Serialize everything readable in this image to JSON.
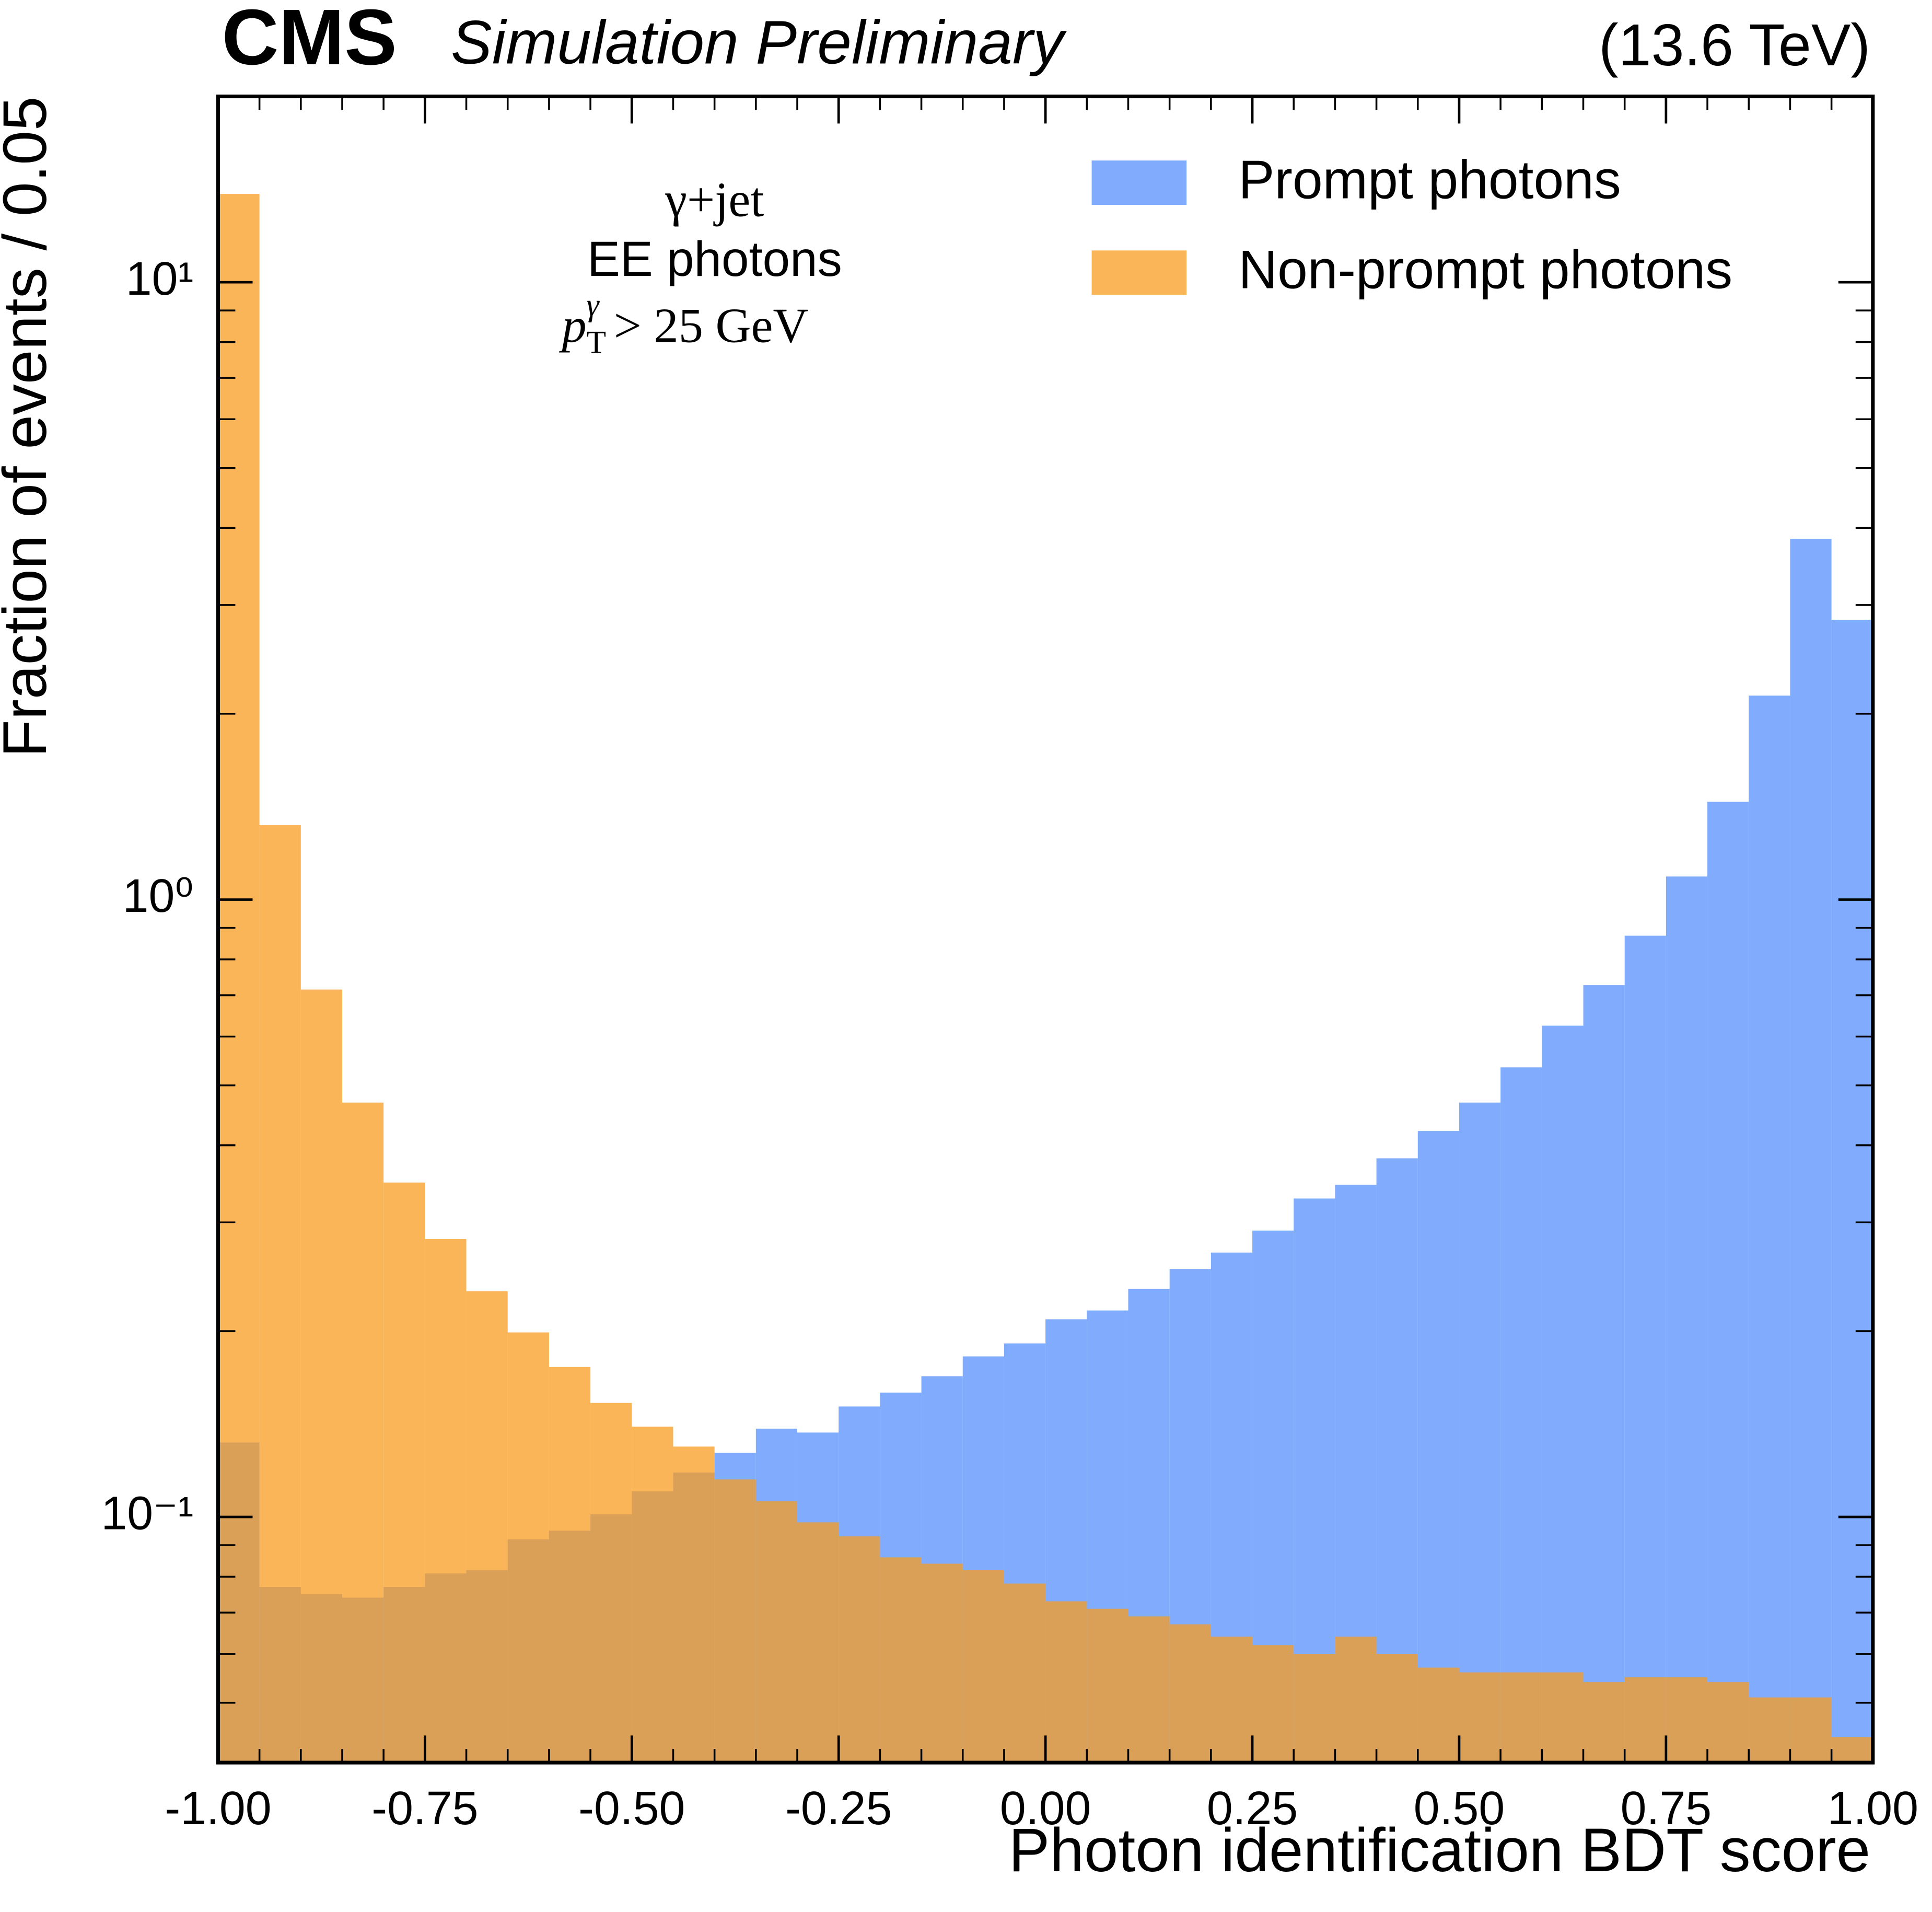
{
  "chart_data": {
    "type": "histogram",
    "experiment": "CMS",
    "status": "Simulation Preliminary",
    "energy": "(13.6 TeV)",
    "xlabel": "Photon identification BDT score",
    "ylabel": "Fraction of events / 0.05",
    "annotations": [
      "γ+jet",
      "EE photons"
    ],
    "annotation_math": [
      "p",
      "T",
      "γ",
      "> 25 GeV"
    ],
    "bins": [
      -1.0,
      -0.95,
      -0.9,
      -0.85,
      -0.8,
      -0.75,
      -0.7,
      -0.65,
      -0.6,
      -0.55,
      -0.5,
      -0.45,
      -0.4,
      -0.35,
      -0.3,
      -0.25,
      -0.2,
      -0.15,
      -0.1,
      -0.05,
      0.0,
      0.05,
      0.1,
      0.15,
      0.2,
      0.25,
      0.3,
      0.35,
      0.4,
      0.45,
      0.5,
      0.55,
      0.6,
      0.65,
      0.7,
      0.75,
      0.8,
      0.85,
      0.9,
      0.95,
      1.0
    ],
    "series": [
      {
        "name": "Prompt photons",
        "color": "#5790fcbf",
        "values": [
          0.132,
          0.077,
          0.075,
          0.074,
          0.077,
          0.081,
          0.082,
          0.092,
          0.095,
          0.101,
          0.11,
          0.118,
          0.127,
          0.139,
          0.137,
          0.151,
          0.159,
          0.169,
          0.182,
          0.191,
          0.209,
          0.216,
          0.234,
          0.252,
          0.268,
          0.291,
          0.328,
          0.345,
          0.381,
          0.422,
          0.469,
          0.535,
          0.625,
          0.727,
          0.874,
          1.09,
          1.44,
          2.14,
          3.84,
          2.84
        ]
      },
      {
        "name": "Non-prompt photons",
        "color": "#f89c20bf",
        "values": [
          13.9,
          1.32,
          0.715,
          0.469,
          0.348,
          0.282,
          0.232,
          0.199,
          0.175,
          0.153,
          0.14,
          0.13,
          0.115,
          0.106,
          0.098,
          0.093,
          0.086,
          0.084,
          0.082,
          0.078,
          0.073,
          0.071,
          0.069,
          0.067,
          0.064,
          0.062,
          0.06,
          0.064,
          0.06,
          0.057,
          0.056,
          0.056,
          0.056,
          0.054,
          0.055,
          0.055,
          0.054,
          0.051,
          0.051,
          0.044
        ]
      }
    ],
    "xlim": [
      -1.0,
      1.0
    ],
    "xticks": [
      {
        "value": -1.0,
        "label": "-1.00"
      },
      -0.75,
      {
        "value": -0.5,
        "label": "-0.50"
      },
      -0.25,
      {
        "value": 0.0,
        "label": "0.00"
      },
      0.25,
      {
        "value": 0.5,
        "label": "0.50"
      },
      0.75,
      {
        "value": 1.0,
        "label": "1.00"
      }
    ],
    "ylim": [
      0.04,
      20
    ],
    "yscale": "log",
    "yticks": [
      {
        "value": 0.1,
        "label": "10⁻¹"
      },
      {
        "value": 1,
        "label": "10⁰"
      },
      {
        "value": 10,
        "label": "10¹"
      }
    ],
    "yminorticks": [
      0.05,
      0.06,
      0.07,
      0.08,
      0.09,
      0.2,
      0.3,
      0.4,
      0.5,
      0.6,
      0.7,
      0.8,
      0.9,
      2,
      3,
      4,
      5,
      6,
      7,
      8,
      9
    ],
    "legend": "upper right"
  }
}
